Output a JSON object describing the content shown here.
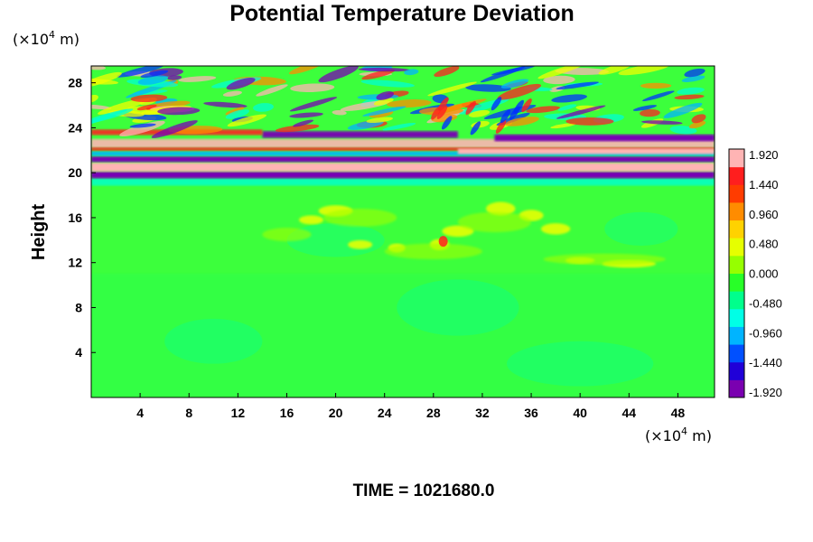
{
  "chart_data": {
    "type": "heatmap",
    "title": "Potential Temperature Deviation",
    "xlabel": "",
    "ylabel": "Height",
    "x_unit": {
      "prefix": "(×10",
      "exp": "4",
      "suffix": " m)"
    },
    "y_unit": {
      "prefix": "(×10",
      "exp": "4",
      "suffix": " m)"
    },
    "x_ticks": [
      "4",
      "8",
      "12",
      "16",
      "20",
      "24",
      "28",
      "32",
      "36",
      "40",
      "44",
      "48"
    ],
    "x_tick_values": [
      4,
      8,
      12,
      16,
      20,
      24,
      28,
      32,
      36,
      40,
      44,
      48
    ],
    "xlim": [
      0,
      51
    ],
    "y_ticks": [
      "4",
      "8",
      "12",
      "16",
      "20",
      "24",
      "28"
    ],
    "y_tick_values": [
      4,
      8,
      12,
      16,
      20,
      24,
      28
    ],
    "ylim": [
      0,
      29.5
    ],
    "colorbar": {
      "labels": [
        "1.920",
        "1.440",
        "0.960",
        "0.480",
        "0.000",
        "-0.480",
        "-0.960",
        "-1.440",
        "-1.920"
      ],
      "range": [
        -1.92,
        1.92
      ],
      "colors": [
        "#7a00b0",
        "#2000d8",
        "#0050ff",
        "#00b4ff",
        "#00ffe6",
        "#00ff8c",
        "#28ff28",
        "#96ff00",
        "#e6ff00",
        "#ffd200",
        "#ff8c00",
        "#ff3c00",
        "#ff1e1e",
        "#ffb4b4"
      ]
    },
    "field_description": "Background near 0 (green) below about 19; strong alternating positive/negative layers between 19 and 25; wave patterns 24-29; weak positive patches near 16 and 12.",
    "series": []
  },
  "footer": {
    "time_label": "TIME = 1021680.0"
  }
}
